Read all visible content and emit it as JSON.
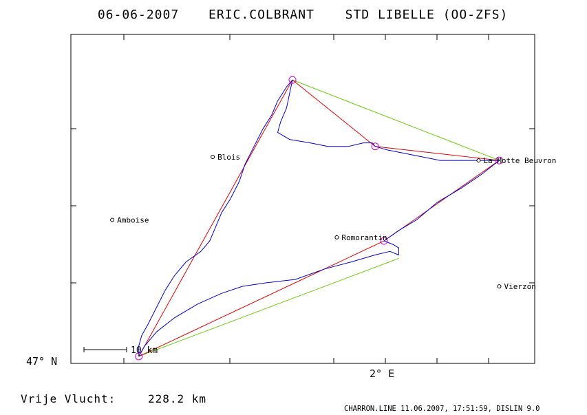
{
  "header": {
    "date": "06-06-2007",
    "pilot": "ERIC.COLBRANT",
    "glider": "STD LIBELLE (OO-ZFS)"
  },
  "footer": {
    "distance_label": "Vrije Vlucht:",
    "distance_value": "228.2 km",
    "credit": "CHARRON.LINE 11.06.2007, 17:51:59, DISLIN 9.0"
  },
  "colors": {
    "track": "#0000cc",
    "task": "#dd0000",
    "closing": "#66cc00",
    "turnpoint": "#cc00cc",
    "frame": "#000000"
  },
  "chart_data": {
    "type": "map-track",
    "lon_range": [
      0.85,
      2.42
    ],
    "lat_range": [
      47.0,
      47.94
    ],
    "axes": {
      "lat_label": "47° N",
      "lon_label": "2° E"
    },
    "grid": false,
    "scale_bar": {
      "label": "10 km",
      "length_km": 10
    },
    "towns": [
      {
        "name": "Blois",
        "lon": 1.33,
        "lat": 47.59
      },
      {
        "name": "La Motte Beuvron",
        "lon": 2.23,
        "lat": 47.58
      },
      {
        "name": "Amboise",
        "lon": 0.99,
        "lat": 47.41
      },
      {
        "name": "Romorantin",
        "lon": 1.75,
        "lat": 47.36
      },
      {
        "name": "Vierzon",
        "lon": 2.3,
        "lat": 47.22
      }
    ],
    "turnpoints": [
      {
        "lon": 1.08,
        "lat": 47.02
      },
      {
        "lon": 1.6,
        "lat": 47.81
      },
      {
        "lon": 1.88,
        "lat": 47.62
      },
      {
        "lon": 2.3,
        "lat": 47.58
      },
      {
        "lon": 1.91,
        "lat": 47.35
      }
    ],
    "task_path": [
      {
        "lon": 1.08,
        "lat": 47.02
      },
      {
        "lon": 1.6,
        "lat": 47.81
      },
      {
        "lon": 1.88,
        "lat": 47.62
      },
      {
        "lon": 2.3,
        "lat": 47.58
      },
      {
        "lon": 1.91,
        "lat": 47.35
      },
      {
        "lon": 1.08,
        "lat": 47.02
      }
    ],
    "closing_lines": [
      {
        "from": {
          "lon": 1.6,
          "lat": 47.81
        },
        "to": {
          "lon": 2.3,
          "lat": 47.58
        }
      },
      {
        "from": {
          "lon": 1.08,
          "lat": 47.02
        },
        "to": {
          "lon": 1.96,
          "lat": 47.3
        }
      }
    ],
    "track": [
      {
        "lon": 1.08,
        "lat": 47.02
      },
      {
        "lon": 1.08,
        "lat": 47.05
      },
      {
        "lon": 1.09,
        "lat": 47.08
      },
      {
        "lon": 1.11,
        "lat": 47.11
      },
      {
        "lon": 1.14,
        "lat": 47.16
      },
      {
        "lon": 1.17,
        "lat": 47.21
      },
      {
        "lon": 1.2,
        "lat": 47.25
      },
      {
        "lon": 1.24,
        "lat": 47.29
      },
      {
        "lon": 1.29,
        "lat": 47.32
      },
      {
        "lon": 1.32,
        "lat": 47.35
      },
      {
        "lon": 1.34,
        "lat": 47.39
      },
      {
        "lon": 1.36,
        "lat": 47.43
      },
      {
        "lon": 1.39,
        "lat": 47.47
      },
      {
        "lon": 1.42,
        "lat": 47.52
      },
      {
        "lon": 1.44,
        "lat": 47.57
      },
      {
        "lon": 1.47,
        "lat": 47.62
      },
      {
        "lon": 1.5,
        "lat": 47.67
      },
      {
        "lon": 1.53,
        "lat": 47.71
      },
      {
        "lon": 1.55,
        "lat": 47.75
      },
      {
        "lon": 1.58,
        "lat": 47.79
      },
      {
        "lon": 1.6,
        "lat": 47.81
      },
      {
        "lon": 1.59,
        "lat": 47.77
      },
      {
        "lon": 1.58,
        "lat": 47.73
      },
      {
        "lon": 1.56,
        "lat": 47.69
      },
      {
        "lon": 1.55,
        "lat": 47.66
      },
      {
        "lon": 1.59,
        "lat": 47.64
      },
      {
        "lon": 1.66,
        "lat": 47.63
      },
      {
        "lon": 1.72,
        "lat": 47.62
      },
      {
        "lon": 1.79,
        "lat": 47.62
      },
      {
        "lon": 1.84,
        "lat": 47.63
      },
      {
        "lon": 1.87,
        "lat": 47.63
      },
      {
        "lon": 1.88,
        "lat": 47.62
      },
      {
        "lon": 1.92,
        "lat": 47.61
      },
      {
        "lon": 1.98,
        "lat": 47.6
      },
      {
        "lon": 2.04,
        "lat": 47.59
      },
      {
        "lon": 2.1,
        "lat": 47.58
      },
      {
        "lon": 2.17,
        "lat": 47.58
      },
      {
        "lon": 2.24,
        "lat": 47.58
      },
      {
        "lon": 2.3,
        "lat": 47.58
      },
      {
        "lon": 2.24,
        "lat": 47.54
      },
      {
        "lon": 2.17,
        "lat": 47.5
      },
      {
        "lon": 2.09,
        "lat": 47.46
      },
      {
        "lon": 2.02,
        "lat": 47.41
      },
      {
        "lon": 1.96,
        "lat": 47.38
      },
      {
        "lon": 1.91,
        "lat": 47.35
      },
      {
        "lon": 1.94,
        "lat": 47.34
      },
      {
        "lon": 1.96,
        "lat": 47.33
      },
      {
        "lon": 1.96,
        "lat": 47.31
      },
      {
        "lon": 1.93,
        "lat": 47.32
      },
      {
        "lon": 1.88,
        "lat": 47.31
      },
      {
        "lon": 1.8,
        "lat": 47.29
      },
      {
        "lon": 1.71,
        "lat": 47.27
      },
      {
        "lon": 1.61,
        "lat": 47.24
      },
      {
        "lon": 1.51,
        "lat": 47.23
      },
      {
        "lon": 1.43,
        "lat": 47.22
      },
      {
        "lon": 1.36,
        "lat": 47.2
      },
      {
        "lon": 1.28,
        "lat": 47.17
      },
      {
        "lon": 1.2,
        "lat": 47.13
      },
      {
        "lon": 1.14,
        "lat": 47.09
      },
      {
        "lon": 1.1,
        "lat": 47.05
      },
      {
        "lon": 1.08,
        "lat": 47.02
      }
    ]
  }
}
